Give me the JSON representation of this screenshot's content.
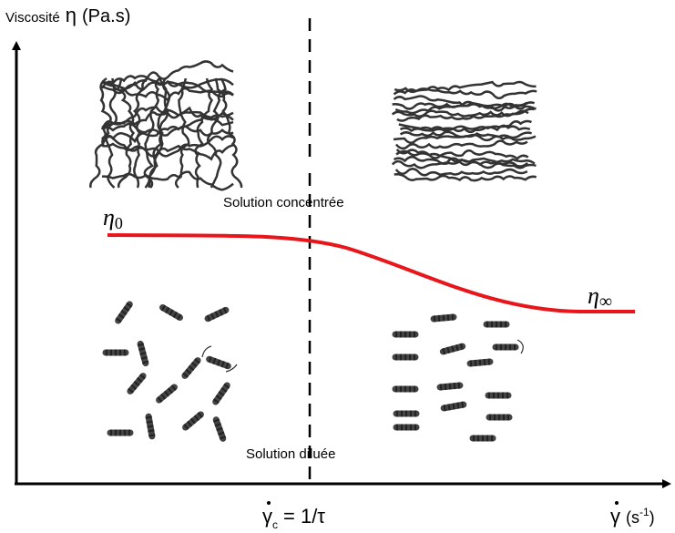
{
  "axes": {
    "y_label": "Viscosité",
    "y_symbol": "η",
    "y_unit": "(Pa.s)",
    "x_symbol": "γ",
    "x_unit_base": "(s",
    "x_unit_exp": "-1",
    "x_unit_close": ")"
  },
  "critical": {
    "symbol": "γ",
    "subscript": "c",
    "value": "= 1/τ"
  },
  "regions": {
    "top": "Solution concentrée",
    "bottom": "Solution diluée"
  },
  "curve": {
    "start_label": "η",
    "start_sub": "0",
    "end_label": "η",
    "end_sub": "∞"
  }
}
